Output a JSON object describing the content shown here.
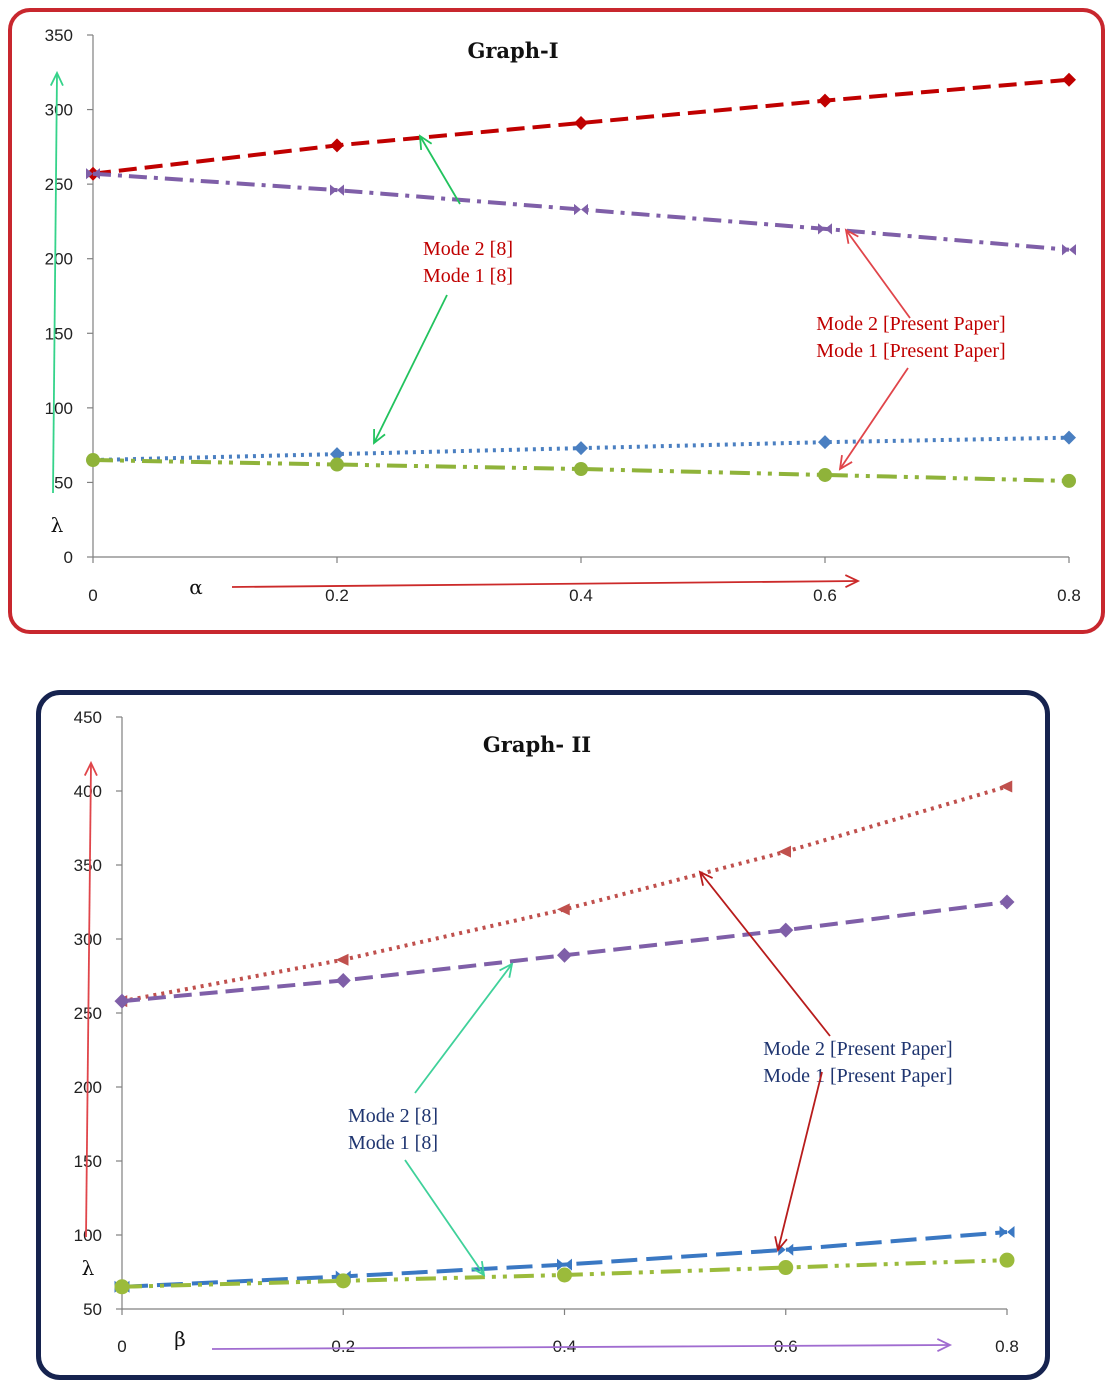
{
  "chart_data": [
    {
      "type": "line",
      "title": "Graph-I",
      "xlabel": "α",
      "ylabel": "λ",
      "x": [
        0,
        0.2,
        0.4,
        0.6,
        0.8
      ],
      "x_tick_labels": [
        "0",
        "0.2",
        "0.4",
        "0.6",
        "0.8"
      ],
      "y_tick_labels": [
        "0",
        "50",
        "100",
        "150",
        "200",
        "250",
        "300",
        "350"
      ],
      "xlim": [
        0,
        0.8
      ],
      "ylim": [
        0,
        350
      ],
      "grid": false,
      "border_color": "#c8272e",
      "series": [
        {
          "color": "#c00000",
          "marker": "diamond",
          "dash": "dashed",
          "values": [
            257,
            276,
            291,
            306,
            320
          ]
        },
        {
          "color": "#7f5fa8",
          "marker": "bowtie",
          "dash": "dashdot",
          "values": [
            257,
            246,
            233,
            220,
            206
          ]
        },
        {
          "color": "#4a7fc1",
          "marker": "diamond",
          "dash": "dotted",
          "values": [
            65,
            69,
            73,
            77,
            80
          ]
        },
        {
          "color": "#8fb33a",
          "marker": "circle",
          "dash": "dashdotdot",
          "values": [
            65,
            62,
            59,
            55,
            51
          ]
        }
      ],
      "annotations": [
        {
          "lines": [
            "Mode 2 [8]",
            "Mode 1 [8]"
          ],
          "color": "#c00000",
          "arrow_color": "#22c35e"
        },
        {
          "lines": [
            "Mode  2 [Present Paper]",
            "Mode  1 [Present Paper]"
          ],
          "color": "#c00000",
          "arrow_color": "#e0454a"
        }
      ],
      "axis_arrows": {
        "y_color": "#35d38a",
        "x_color": "#cc2a2a"
      }
    },
    {
      "type": "line",
      "title": "Graph- II",
      "xlabel": "β",
      "ylabel": "λ",
      "x": [
        0,
        0.2,
        0.4,
        0.6,
        0.8
      ],
      "x_tick_labels": [
        "0",
        "0.2",
        "0.4",
        "0.6",
        "0.8"
      ],
      "y_tick_labels": [
        "50",
        "100",
        "150",
        "200",
        "250",
        "300",
        "350",
        "400",
        "450"
      ],
      "xlim": [
        0,
        0.8
      ],
      "ylim": [
        50,
        450
      ],
      "grid": false,
      "border_color": "#16234f",
      "series": [
        {
          "color": "#c0504d",
          "marker": "triangle",
          "dash": "dotted",
          "values": [
            258,
            286,
            320,
            359,
            403
          ]
        },
        {
          "color": "#7f5fa8",
          "marker": "diamond",
          "dash": "dashed",
          "values": [
            258,
            272,
            289,
            306,
            325
          ]
        },
        {
          "color": "#3a78c3",
          "marker": "bowtie",
          "dash": "longdash",
          "values": [
            65,
            72,
            80,
            90,
            102
          ]
        },
        {
          "color": "#9bbb3b",
          "marker": "circle",
          "dash": "dashdotdot",
          "values": [
            65,
            69,
            73,
            78,
            83
          ]
        }
      ],
      "annotations": [
        {
          "lines": [
            "Mode 2 [8]",
            "Mode 1 [8]"
          ],
          "color": "#1f3570",
          "arrow_color": "#3fd19a"
        },
        {
          "lines": [
            "Mode 2 [Present Paper]",
            "Mode 1 [Present Paper]"
          ],
          "color": "#1f3570",
          "arrow_color": "#b81c1c"
        }
      ],
      "axis_arrows": {
        "y_color": "#e0454a",
        "x_color": "#a06cd0"
      }
    }
  ]
}
